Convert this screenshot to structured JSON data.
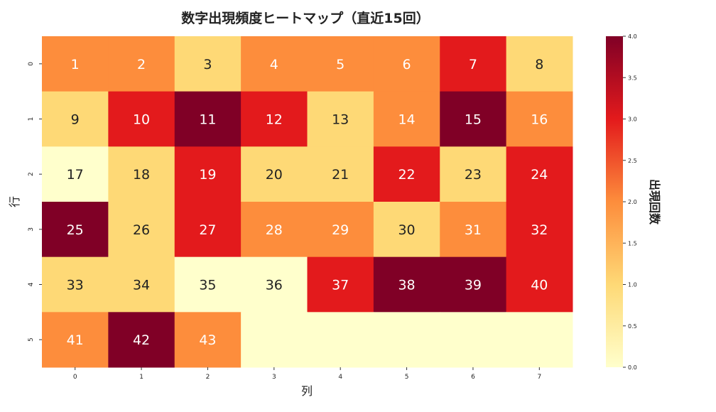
{
  "chart_data": {
    "type": "heatmap",
    "title": "数字出現頻度ヒートマップ（直近15回）",
    "xlabel": "列",
    "ylabel": "行",
    "colorbar_label": "出現回数",
    "colormap": "YlOrRd",
    "colors": [
      "#ffffcc",
      "#fed976",
      "#fd8d3c",
      "#e31a1c",
      "#800026"
    ],
    "vmin": 0,
    "vmax": 4,
    "x_ticks": [
      "0",
      "1",
      "2",
      "3",
      "4",
      "5",
      "6",
      "7"
    ],
    "y_ticks": [
      "0",
      "1",
      "2",
      "3",
      "4",
      "5"
    ],
    "colorbar_ticks": [
      "0.0",
      "0.5",
      "1.0",
      "1.5",
      "2.0",
      "2.5",
      "3.0",
      "3.5",
      "4.0"
    ],
    "annotations": [
      [
        "1",
        "2",
        "3",
        "4",
        "5",
        "6",
        "7",
        "8"
      ],
      [
        "9",
        "10",
        "11",
        "12",
        "13",
        "14",
        "15",
        "16"
      ],
      [
        "17",
        "18",
        "19",
        "20",
        "21",
        "22",
        "23",
        "24"
      ],
      [
        "25",
        "26",
        "27",
        "28",
        "29",
        "30",
        "31",
        "32"
      ],
      [
        "33",
        "34",
        "35",
        "36",
        "37",
        "38",
        "39",
        "40"
      ],
      [
        "41",
        "42",
        "43",
        "",
        "",
        "",
        "",
        ""
      ]
    ],
    "values": [
      [
        2,
        2,
        1,
        2,
        2,
        2,
        3,
        1
      ],
      [
        1,
        3,
        4,
        3,
        1,
        2,
        4,
        2
      ],
      [
        0,
        1,
        3,
        1,
        1,
        3,
        1,
        3
      ],
      [
        4,
        1,
        3,
        2,
        2,
        1,
        2,
        3
      ],
      [
        1,
        1,
        0,
        0,
        3,
        4,
        4,
        3
      ],
      [
        2,
        4,
        2,
        0,
        0,
        0,
        0,
        0
      ]
    ]
  }
}
